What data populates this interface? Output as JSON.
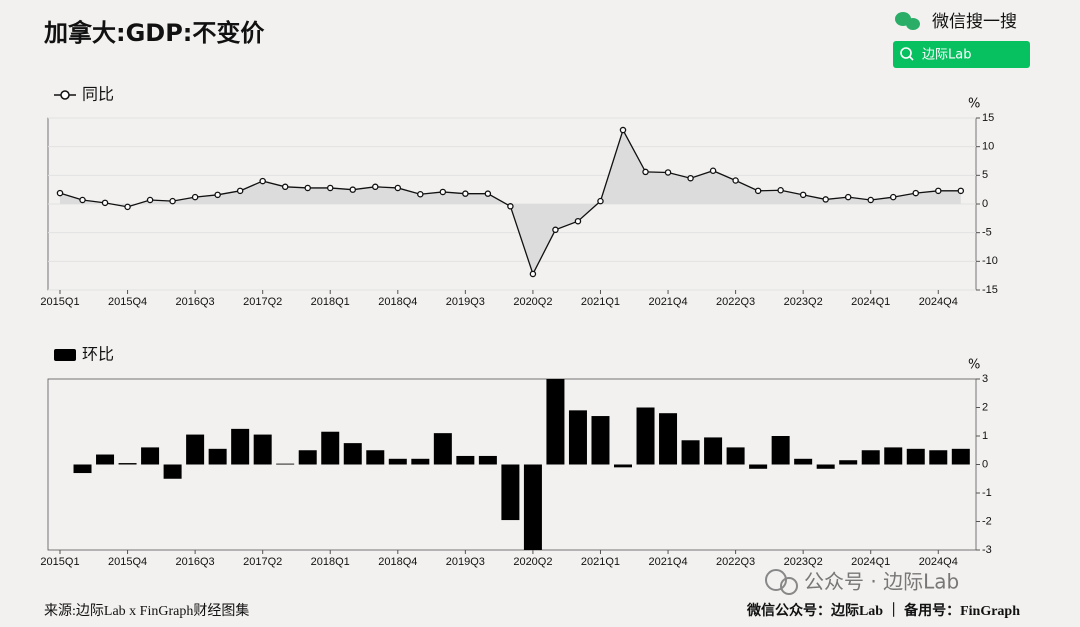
{
  "header": {
    "title": "加拿大:GDP:不变价",
    "search_hint": "微信搜一搜",
    "search_button": "边际Lab"
  },
  "chart_data": [
    {
      "type": "line",
      "y_unit": "%",
      "area": true,
      "categories": [
        "2015Q1",
        null,
        null,
        "2015Q4",
        null,
        null,
        "2016Q3",
        null,
        null,
        "2017Q2",
        null,
        null,
        "2018Q1",
        null,
        null,
        "2018Q4",
        null,
        null,
        "2019Q3",
        null,
        null,
        "2020Q2",
        null,
        null,
        "2021Q1",
        null,
        null,
        "2021Q4",
        null,
        null,
        "2022Q3",
        null,
        null,
        "2023Q2",
        null,
        null,
        "2024Q1",
        null,
        null,
        "2024Q4",
        null
      ],
      "series": [
        {
          "name": "同比",
          "color": "#111111",
          "values": [
            1.9,
            0.7,
            0.2,
            -0.5,
            0.7,
            0.5,
            1.2,
            1.6,
            2.3,
            4.0,
            3.0,
            2.8,
            2.8,
            2.5,
            3.0,
            2.8,
            1.7,
            2.1,
            1.8,
            1.8,
            -0.4,
            -12.2,
            -4.5,
            -3.0,
            0.5,
            12.9,
            5.6,
            5.5,
            4.5,
            5.8,
            4.1,
            2.3,
            2.4,
            1.6,
            0.8,
            1.2,
            0.7,
            1.2,
            1.9,
            2.3,
            2.3
          ]
        }
      ],
      "ylim": [
        -15,
        15
      ],
      "yticks": [
        15,
        10,
        5,
        0,
        -5,
        -10,
        -15
      ],
      "grid": true
    },
    {
      "type": "bar",
      "y_unit": "%",
      "categories": [
        "2015Q1",
        null,
        null,
        "2015Q4",
        null,
        null,
        "2016Q3",
        null,
        null,
        "2017Q2",
        null,
        null,
        "2018Q1",
        null,
        null,
        "2018Q4",
        null,
        null,
        "2019Q3",
        null,
        null,
        "2020Q2",
        null,
        null,
        "2021Q1",
        null,
        null,
        "2021Q4",
        null,
        null,
        "2022Q3",
        null,
        null,
        "2023Q2",
        null,
        null,
        "2024Q1",
        null,
        null,
        "2024Q4",
        null
      ],
      "series": [
        {
          "name": "环比",
          "color": "#000000",
          "values": [
            null,
            -0.3,
            0.35,
            0.05,
            0.6,
            -0.5,
            1.05,
            0.55,
            1.25,
            1.05,
            0.03,
            0.5,
            1.15,
            0.75,
            0.5,
            0.2,
            0.2,
            1.1,
            0.3,
            0.3,
            -1.95,
            -3,
            3,
            1.9,
            1.7,
            -0.1,
            2.0,
            1.8,
            0.85,
            0.95,
            0.6,
            -0.15,
            1.0,
            0.2,
            -0.15,
            0.15,
            0.5,
            0.6,
            0.55,
            0.5,
            0.55
          ]
        }
      ],
      "ylim": [
        -3,
        3
      ],
      "yticks": [
        3,
        2,
        1,
        0,
        -1,
        -2,
        -3
      ],
      "grid": false
    }
  ],
  "footer": {
    "source": "来源:边际Lab x FinGraph财经图集",
    "accounts": "微信公众号：边际Lab ｜ 备用号：FinGraph",
    "watermark": "公众号 · 边际Lab"
  }
}
